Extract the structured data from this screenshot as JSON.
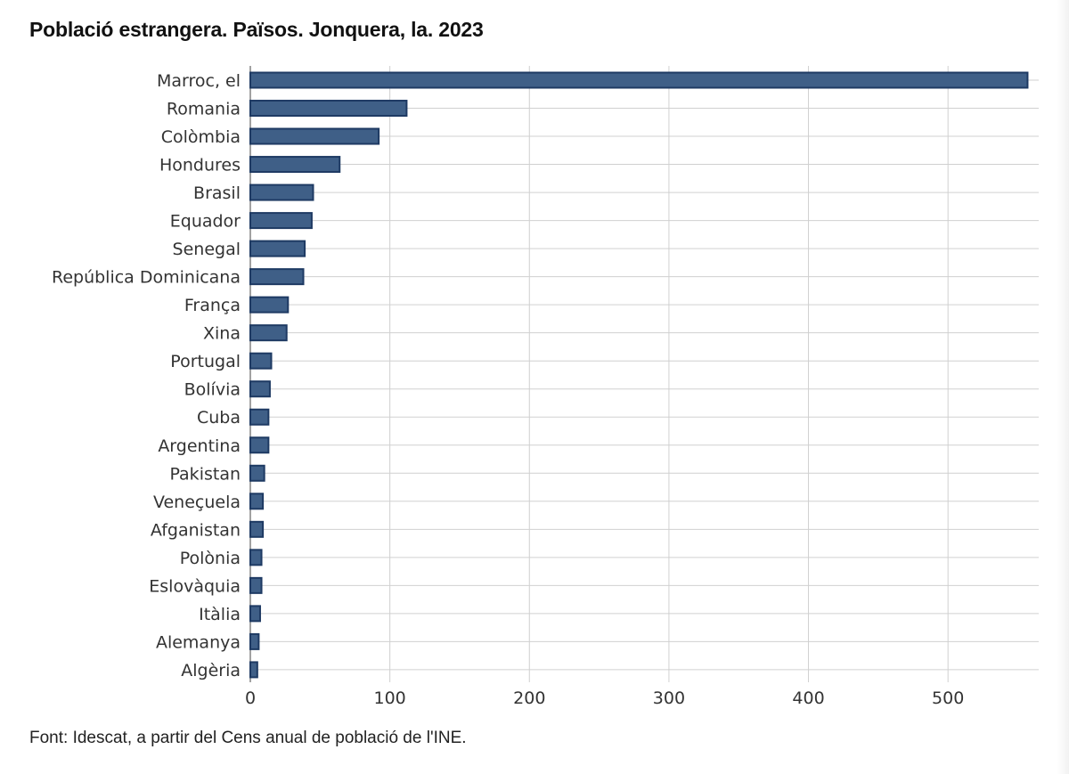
{
  "title": "Població estrangera. Països. Jonquera, la. 2023",
  "source": "Font: Idescat, a partir del Cens anual de població de l'INE.",
  "colors": {
    "bar_fill": "#3f5f87",
    "bar_stroke": "#1e3a63",
    "grid": "#d0d0d0",
    "axis_text": "#333333"
  },
  "chart_data": {
    "type": "bar",
    "orientation": "horizontal",
    "categories": [
      "Marroc, el",
      "Romania",
      "Colòmbia",
      "Hondures",
      "Brasil",
      "Equador",
      "Senegal",
      "República Dominicana",
      "França",
      "Xina",
      "Portugal",
      "Bolívia",
      "Cuba",
      "Argentina",
      "Pakistan",
      "Veneçuela",
      "Afganistan",
      "Polònia",
      "Eslovàquia",
      "Itàlia",
      "Alemanya",
      "Algèria"
    ],
    "values": [
      557,
      112,
      92,
      64,
      45,
      44,
      39,
      38,
      27,
      26,
      15,
      14,
      13,
      13,
      10,
      9,
      9,
      8,
      8,
      7,
      6,
      5
    ],
    "xlim": [
      0,
      565
    ],
    "xticks": [
      0,
      100,
      200,
      300,
      400,
      500
    ],
    "grid": true,
    "legend": "none"
  }
}
